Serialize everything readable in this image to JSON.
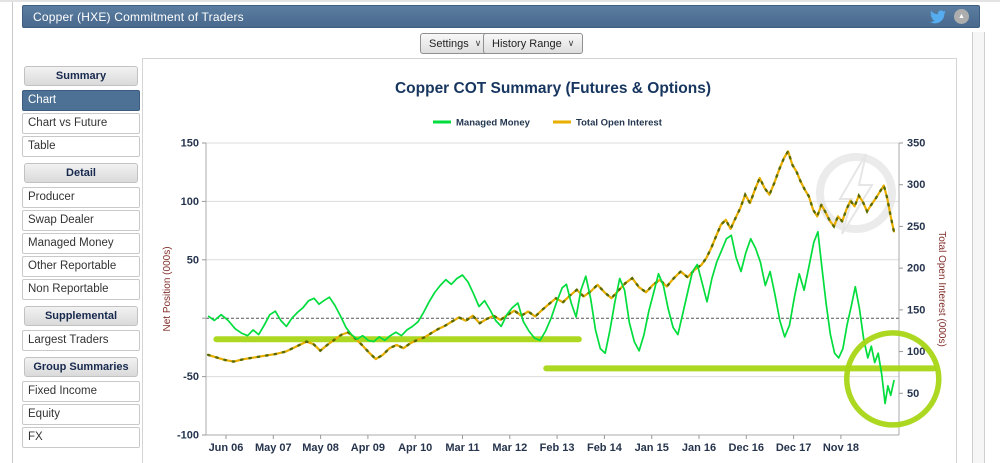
{
  "title_bar": {
    "title": "Copper (HXE) Commitment of Traders"
  },
  "toolbar": {
    "settings_label": "Settings",
    "history_range_label": "History Range",
    "dropdown_chevron": "∨"
  },
  "icons": {
    "twitter": "twitter-icon",
    "collapse": "collapse-up-icon",
    "collapse_glyph": "▲"
  },
  "sidebar": {
    "sections": [
      {
        "header": "Summary",
        "items": [
          {
            "label": "Chart",
            "selected": true
          },
          {
            "label": "Chart vs Future",
            "selected": false
          },
          {
            "label": "Table",
            "selected": false
          }
        ]
      },
      {
        "header": "Detail",
        "items": [
          {
            "label": "Producer",
            "selected": false
          },
          {
            "label": "Swap Dealer",
            "selected": false
          },
          {
            "label": "Managed Money",
            "selected": false
          },
          {
            "label": "Other Reportable",
            "selected": false
          },
          {
            "label": "Non Reportable",
            "selected": false
          }
        ]
      },
      {
        "header": "Supplemental",
        "items": [
          {
            "label": "Largest Traders",
            "selected": false
          }
        ]
      },
      {
        "header": "Group Summaries",
        "items": [
          {
            "label": "Fixed Income",
            "selected": false
          },
          {
            "label": "Equity",
            "selected": false
          },
          {
            "label": "FX",
            "selected": false
          }
        ]
      }
    ]
  },
  "chart_data": {
    "type": "line",
    "title": "Copper COT Summary (Futures & Options)",
    "title_color": "#16355f",
    "legend_position": "top-center",
    "grid": true,
    "x_tick_labels": [
      "Jun 06",
      "May 07",
      "May 08",
      "Apr 09",
      "Apr 10",
      "Mar 11",
      "Mar 12",
      "Feb 13",
      "Feb 14",
      "Jan 15",
      "Jan 16",
      "Dec 16",
      "Dec 17",
      "Nov 18"
    ],
    "left_axis": {
      "label": "Net Position (000s)",
      "range": [
        -100,
        150
      ],
      "ticks": [
        150,
        100,
        50,
        0,
        -50,
        -100
      ],
      "zero_label_hidden": true,
      "label_color": "#822f2b"
    },
    "right_axis": {
      "label": "Total Open Interest (000s)",
      "range": [
        0,
        350
      ],
      "ticks": [
        350,
        300,
        250,
        200,
        150,
        100,
        50
      ],
      "label_color": "#822f2b"
    },
    "zero_line": {
      "style": "dashed",
      "color": "#555555"
    },
    "series": [
      {
        "name": "Managed Money",
        "axis": "left",
        "color": "#00dd3c",
        "points": [
          [
            0.003,
            2
          ],
          [
            0.012,
            -2
          ],
          [
            0.022,
            3
          ],
          [
            0.032,
            -2
          ],
          [
            0.042,
            -9
          ],
          [
            0.052,
            -13
          ],
          [
            0.06,
            -15
          ],
          [
            0.068,
            -10
          ],
          [
            0.076,
            -14
          ],
          [
            0.084,
            -6
          ],
          [
            0.092,
            3
          ],
          [
            0.1,
            6
          ],
          [
            0.108,
            -2
          ],
          [
            0.116,
            -7
          ],
          [
            0.124,
            0
          ],
          [
            0.132,
            5
          ],
          [
            0.14,
            9
          ],
          [
            0.148,
            15
          ],
          [
            0.156,
            17
          ],
          [
            0.163,
            12
          ],
          [
            0.17,
            15
          ],
          [
            0.178,
            18
          ],
          [
            0.186,
            11
          ],
          [
            0.194,
            2
          ],
          [
            0.202,
            -8
          ],
          [
            0.21,
            -14
          ],
          [
            0.218,
            -18
          ],
          [
            0.226,
            -15
          ],
          [
            0.234,
            -19
          ],
          [
            0.242,
            -20
          ],
          [
            0.25,
            -16
          ],
          [
            0.258,
            -19
          ],
          [
            0.266,
            -15
          ],
          [
            0.274,
            -12
          ],
          [
            0.282,
            -15
          ],
          [
            0.29,
            -10
          ],
          [
            0.298,
            -7
          ],
          [
            0.306,
            -3
          ],
          [
            0.314,
            5
          ],
          [
            0.322,
            14
          ],
          [
            0.33,
            22
          ],
          [
            0.338,
            28
          ],
          [
            0.346,
            33
          ],
          [
            0.354,
            29
          ],
          [
            0.362,
            34
          ],
          [
            0.37,
            37
          ],
          [
            0.378,
            31
          ],
          [
            0.386,
            21
          ],
          [
            0.394,
            10
          ],
          [
            0.402,
            15
          ],
          [
            0.41,
            7
          ],
          [
            0.418,
            -2
          ],
          [
            0.426,
            -7
          ],
          [
            0.434,
            3
          ],
          [
            0.442,
            9
          ],
          [
            0.45,
            13
          ],
          [
            0.458,
            -3
          ],
          [
            0.466,
            -11
          ],
          [
            0.474,
            -17
          ],
          [
            0.482,
            -19
          ],
          [
            0.49,
            -11
          ],
          [
            0.498,
            0
          ],
          [
            0.506,
            14
          ],
          [
            0.514,
            26
          ],
          [
            0.52,
            29
          ],
          [
            0.527,
            13
          ],
          [
            0.534,
            1
          ],
          [
            0.541,
            24
          ],
          [
            0.548,
            36
          ],
          [
            0.555,
            17
          ],
          [
            0.562,
            -10
          ],
          [
            0.569,
            -26
          ],
          [
            0.576,
            -30
          ],
          [
            0.583,
            -10
          ],
          [
            0.59,
            14
          ],
          [
            0.597,
            34
          ],
          [
            0.604,
            24
          ],
          [
            0.611,
            -4
          ],
          [
            0.618,
            -20
          ],
          [
            0.625,
            -28
          ],
          [
            0.632,
            -14
          ],
          [
            0.639,
            6
          ],
          [
            0.646,
            22
          ],
          [
            0.653,
            38
          ],
          [
            0.66,
            28
          ],
          [
            0.667,
            8
          ],
          [
            0.674,
            -8
          ],
          [
            0.681,
            -14
          ],
          [
            0.688,
            4
          ],
          [
            0.695,
            22
          ],
          [
            0.702,
            40
          ],
          [
            0.709,
            46
          ],
          [
            0.716,
            30
          ],
          [
            0.723,
            14
          ],
          [
            0.73,
            34
          ],
          [
            0.737,
            48
          ],
          [
            0.744,
            58
          ],
          [
            0.751,
            68
          ],
          [
            0.758,
            71
          ],
          [
            0.765,
            52
          ],
          [
            0.772,
            40
          ],
          [
            0.779,
            56
          ],
          [
            0.786,
            68
          ],
          [
            0.793,
            60
          ],
          [
            0.8,
            48
          ],
          [
            0.807,
            28
          ],
          [
            0.814,
            40
          ],
          [
            0.821,
            20
          ],
          [
            0.828,
            -2
          ],
          [
            0.835,
            -16
          ],
          [
            0.842,
            -6
          ],
          [
            0.849,
            18
          ],
          [
            0.856,
            38
          ],
          [
            0.863,
            24
          ],
          [
            0.87,
            44
          ],
          [
            0.877,
            65
          ],
          [
            0.883,
            74
          ],
          [
            0.889,
            42
          ],
          [
            0.895,
            12
          ],
          [
            0.901,
            -14
          ],
          [
            0.907,
            -30
          ],
          [
            0.913,
            -34
          ],
          [
            0.919,
            -26
          ],
          [
            0.925,
            -6
          ],
          [
            0.931,
            10
          ],
          [
            0.937,
            27
          ],
          [
            0.943,
            8
          ],
          [
            0.949,
            -18
          ],
          [
            0.955,
            -34
          ],
          [
            0.96,
            -24
          ],
          [
            0.965,
            -38
          ],
          [
            0.97,
            -30
          ],
          [
            0.975,
            -48
          ],
          [
            0.98,
            -73
          ],
          [
            0.984,
            -58
          ],
          [
            0.988,
            -66
          ],
          [
            0.993,
            -53
          ]
        ]
      },
      {
        "name": "Total Open Interest",
        "axis": "right",
        "color": "#e8ae00",
        "marker_color": "#5c6b00",
        "points": [
          [
            0.003,
            96
          ],
          [
            0.015,
            93
          ],
          [
            0.027,
            90
          ],
          [
            0.04,
            88
          ],
          [
            0.055,
            91
          ],
          [
            0.07,
            93
          ],
          [
            0.085,
            95
          ],
          [
            0.1,
            97
          ],
          [
            0.115,
            100
          ],
          [
            0.13,
            106
          ],
          [
            0.145,
            112
          ],
          [
            0.155,
            109
          ],
          [
            0.165,
            101
          ],
          [
            0.175,
            108
          ],
          [
            0.185,
            114
          ],
          [
            0.195,
            120
          ],
          [
            0.205,
            123
          ],
          [
            0.215,
            116
          ],
          [
            0.225,
            108
          ],
          [
            0.235,
            99
          ],
          [
            0.245,
            91
          ],
          [
            0.255,
            96
          ],
          [
            0.265,
            104
          ],
          [
            0.275,
            108
          ],
          [
            0.285,
            104
          ],
          [
            0.295,
            110
          ],
          [
            0.305,
            114
          ],
          [
            0.315,
            117
          ],
          [
            0.325,
            122
          ],
          [
            0.335,
            127
          ],
          [
            0.345,
            131
          ],
          [
            0.355,
            136
          ],
          [
            0.365,
            141
          ],
          [
            0.375,
            137
          ],
          [
            0.385,
            143
          ],
          [
            0.395,
            134
          ],
          [
            0.405,
            139
          ],
          [
            0.415,
            143
          ],
          [
            0.425,
            138
          ],
          [
            0.435,
            144
          ],
          [
            0.445,
            149
          ],
          [
            0.455,
            143
          ],
          [
            0.465,
            148
          ],
          [
            0.475,
            142
          ],
          [
            0.485,
            150
          ],
          [
            0.495,
            157
          ],
          [
            0.505,
            164
          ],
          [
            0.515,
            159
          ],
          [
            0.525,
            167
          ],
          [
            0.535,
            174
          ],
          [
            0.545,
            166
          ],
          [
            0.555,
            172
          ],
          [
            0.565,
            180
          ],
          [
            0.575,
            171
          ],
          [
            0.585,
            164
          ],
          [
            0.595,
            173
          ],
          [
            0.605,
            182
          ],
          [
            0.615,
            188
          ],
          [
            0.625,
            177
          ],
          [
            0.635,
            171
          ],
          [
            0.645,
            180
          ],
          [
            0.655,
            186
          ],
          [
            0.665,
            178
          ],
          [
            0.675,
            188
          ],
          [
            0.685,
            196
          ],
          [
            0.695,
            189
          ],
          [
            0.705,
            198
          ],
          [
            0.715,
            204
          ],
          [
            0.722,
            212
          ],
          [
            0.729,
            224
          ],
          [
            0.736,
            238
          ],
          [
            0.743,
            252
          ],
          [
            0.75,
            258
          ],
          [
            0.757,
            247
          ],
          [
            0.764,
            260
          ],
          [
            0.771,
            272
          ],
          [
            0.778,
            288
          ],
          [
            0.785,
            278
          ],
          [
            0.792,
            294
          ],
          [
            0.799,
            308
          ],
          [
            0.806,
            296
          ],
          [
            0.813,
            288
          ],
          [
            0.82,
            302
          ],
          [
            0.827,
            318
          ],
          [
            0.834,
            332
          ],
          [
            0.84,
            340
          ],
          [
            0.846,
            324
          ],
          [
            0.852,
            316
          ],
          [
            0.858,
            304
          ],
          [
            0.864,
            294
          ],
          [
            0.87,
            286
          ],
          [
            0.876,
            270
          ],
          [
            0.882,
            262
          ],
          [
            0.888,
            276
          ],
          [
            0.894,
            267
          ],
          [
            0.9,
            257
          ],
          [
            0.906,
            250
          ],
          [
            0.912,
            262
          ],
          [
            0.918,
            256
          ],
          [
            0.924,
            270
          ],
          [
            0.93,
            281
          ],
          [
            0.936,
            274
          ],
          [
            0.942,
            287
          ],
          [
            0.948,
            279
          ],
          [
            0.954,
            268
          ],
          [
            0.96,
            276
          ],
          [
            0.966,
            283
          ],
          [
            0.972,
            291
          ],
          [
            0.978,
            299
          ],
          [
            0.983,
            284
          ],
          [
            0.988,
            262
          ],
          [
            0.993,
            243
          ]
        ]
      }
    ],
    "annotations": {
      "color": "#a8d616",
      "lines": [
        {
          "t1": 0.015,
          "t2": 0.538,
          "value": -18,
          "axis": "left"
        },
        {
          "t1": 0.491,
          "t2": 1.05,
          "value": -43,
          "axis": "left"
        }
      ],
      "circle": {
        "t": 0.991,
        "value": -52,
        "radius_px": 46
      }
    },
    "watermark": "lightning-bolt-logo"
  }
}
